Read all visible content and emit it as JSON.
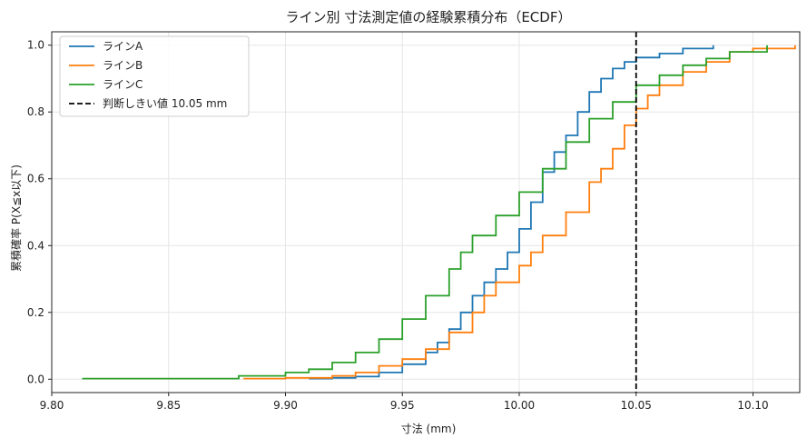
{
  "chart_data": {
    "type": "line",
    "title": "ライン別 寸法測定値の経験累積分布（ECDF）",
    "xlabel": "寸法 (mm)",
    "ylabel": "累積確率 P(X≦x以下)",
    "xlim": [
      9.8,
      10.12
    ],
    "ylim": [
      -0.04,
      1.04
    ],
    "xticks": [
      "9.80",
      "9.85",
      "9.90",
      "9.95",
      "10.00",
      "10.05",
      "10.10"
    ],
    "xtick_values": [
      9.8,
      9.85,
      9.9,
      9.95,
      10.0,
      10.05,
      10.1
    ],
    "yticks": [
      "0.0",
      "0.2",
      "0.4",
      "0.6",
      "0.8",
      "1.0"
    ],
    "ytick_values": [
      0.0,
      0.2,
      0.4,
      0.6,
      0.8,
      1.0
    ],
    "grid": true,
    "legend_position": "top-left",
    "series": [
      {
        "name": "ラインA",
        "color": "#1f77b4",
        "points": [
          [
            9.91,
            0.002
          ],
          [
            9.92,
            0.004
          ],
          [
            9.93,
            0.008
          ],
          [
            9.94,
            0.02
          ],
          [
            9.95,
            0.045
          ],
          [
            9.96,
            0.08
          ],
          [
            9.965,
            0.11
          ],
          [
            9.97,
            0.15
          ],
          [
            9.975,
            0.2
          ],
          [
            9.98,
            0.25
          ],
          [
            9.985,
            0.29
          ],
          [
            9.99,
            0.33
          ],
          [
            9.995,
            0.38
          ],
          [
            10.0,
            0.45
          ],
          [
            10.005,
            0.53
          ],
          [
            10.01,
            0.62
          ],
          [
            10.015,
            0.68
          ],
          [
            10.02,
            0.73
          ],
          [
            10.025,
            0.8
          ],
          [
            10.03,
            0.86
          ],
          [
            10.035,
            0.9
          ],
          [
            10.04,
            0.93
          ],
          [
            10.045,
            0.95
          ],
          [
            10.05,
            0.963
          ],
          [
            10.06,
            0.975
          ],
          [
            10.07,
            0.99
          ],
          [
            10.083,
            1.0
          ]
        ]
      },
      {
        "name": "ラインB",
        "color": "#ff7f0e",
        "points": [
          [
            9.882,
            0.002
          ],
          [
            9.9,
            0.004
          ],
          [
            9.92,
            0.01
          ],
          [
            9.93,
            0.02
          ],
          [
            9.94,
            0.04
          ],
          [
            9.95,
            0.06
          ],
          [
            9.96,
            0.09
          ],
          [
            9.97,
            0.14
          ],
          [
            9.98,
            0.2
          ],
          [
            9.985,
            0.25
          ],
          [
            9.99,
            0.29
          ],
          [
            10.0,
            0.34
          ],
          [
            10.005,
            0.38
          ],
          [
            10.01,
            0.43
          ],
          [
            10.02,
            0.5
          ],
          [
            10.03,
            0.59
          ],
          [
            10.035,
            0.63
          ],
          [
            10.04,
            0.69
          ],
          [
            10.045,
            0.76
          ],
          [
            10.05,
            0.81
          ],
          [
            10.055,
            0.85
          ],
          [
            10.06,
            0.88
          ],
          [
            10.07,
            0.92
          ],
          [
            10.08,
            0.95
          ],
          [
            10.09,
            0.98
          ],
          [
            10.1,
            0.99
          ],
          [
            10.118,
            1.0
          ]
        ]
      },
      {
        "name": "ラインC",
        "color": "#2ca02c",
        "points": [
          [
            9.813,
            0.002
          ],
          [
            9.88,
            0.01
          ],
          [
            9.9,
            0.02
          ],
          [
            9.91,
            0.03
          ],
          [
            9.92,
            0.05
          ],
          [
            9.93,
            0.08
          ],
          [
            9.94,
            0.12
          ],
          [
            9.95,
            0.18
          ],
          [
            9.96,
            0.25
          ],
          [
            9.97,
            0.33
          ],
          [
            9.975,
            0.38
          ],
          [
            9.98,
            0.43
          ],
          [
            9.99,
            0.49
          ],
          [
            10.0,
            0.56
          ],
          [
            10.01,
            0.63
          ],
          [
            10.02,
            0.71
          ],
          [
            10.03,
            0.78
          ],
          [
            10.04,
            0.83
          ],
          [
            10.05,
            0.88
          ],
          [
            10.06,
            0.91
          ],
          [
            10.07,
            0.94
          ],
          [
            10.08,
            0.96
          ],
          [
            10.09,
            0.98
          ],
          [
            10.106,
            1.0
          ]
        ]
      }
    ],
    "reference_line": {
      "label": "判断しきい値 10.05 mm",
      "x": 10.05,
      "color": "#000000",
      "style": "dashed"
    }
  }
}
